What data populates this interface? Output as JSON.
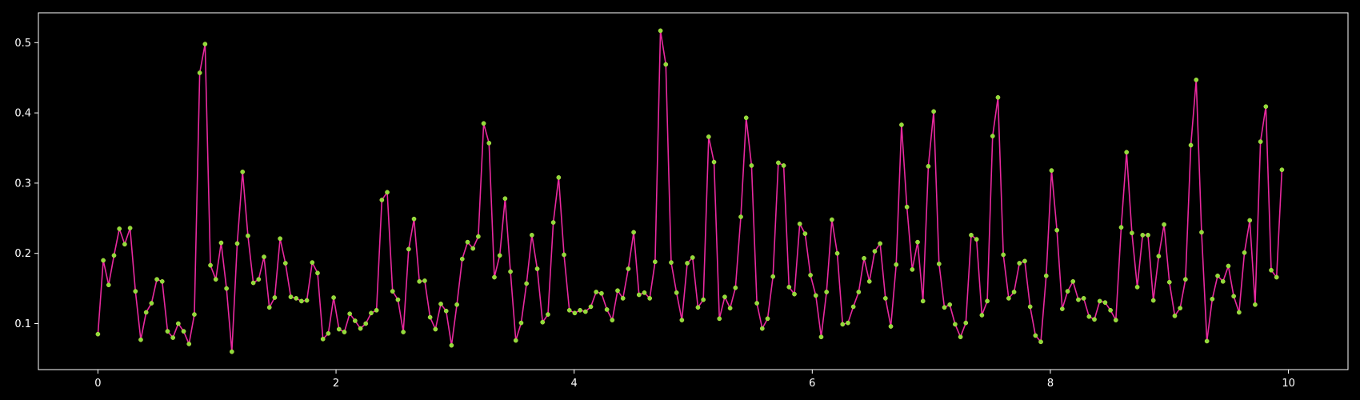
{
  "chart_data": {
    "type": "line",
    "title": "",
    "xlabel": "",
    "ylabel": "",
    "xlim": [
      -0.5,
      10.5
    ],
    "ylim": [
      0.0345,
      0.5425
    ],
    "xticks": [
      0,
      2,
      4,
      6,
      8,
      10
    ],
    "yticks": [
      0.1,
      0.2,
      0.3,
      0.4,
      0.5
    ],
    "xtick_labels": [
      "0",
      "2",
      "4",
      "6",
      "8",
      "10"
    ],
    "ytick_labels": [
      "0.1",
      "0.2",
      "0.3",
      "0.4",
      "0.5"
    ],
    "grid": false,
    "legend": false,
    "line_color": "#e8299f",
    "marker_color": "#8fdc3a",
    "background": "#000000",
    "axis_color": "#ffffff",
    "series": [
      {
        "x_start": 0,
        "x_step": 0.045,
        "values": [
          0.085,
          0.19,
          0.155,
          0.197,
          0.235,
          0.213,
          0.236,
          0.146,
          0.077,
          0.116,
          0.129,
          0.163,
          0.16,
          0.089,
          0.08,
          0.1,
          0.089,
          0.071,
          0.113,
          0.457,
          0.498,
          0.183,
          0.163,
          0.215,
          0.15,
          0.06,
          0.214,
          0.316,
          0.225,
          0.158,
          0.163,
          0.195,
          0.123,
          0.137,
          0.221,
          0.186,
          0.138,
          0.136,
          0.132,
          0.133,
          0.187,
          0.172,
          0.078,
          0.086,
          0.137,
          0.092,
          0.088,
          0.114,
          0.104,
          0.093,
          0.1,
          0.115,
          0.119,
          0.276,
          0.287,
          0.146,
          0.134,
          0.088,
          0.206,
          0.249,
          0.16,
          0.161,
          0.109,
          0.092,
          0.128,
          0.118,
          0.069,
          0.127,
          0.192,
          0.216,
          0.207,
          0.224,
          0.385,
          0.357,
          0.166,
          0.197,
          0.278,
          0.174,
          0.076,
          0.101,
          0.157,
          0.226,
          0.178,
          0.102,
          0.113,
          0.244,
          0.308,
          0.198,
          0.119,
          0.115,
          0.119,
          0.117,
          0.124,
          0.145,
          0.143,
          0.12,
          0.105,
          0.147,
          0.136,
          0.178,
          0.23,
          0.141,
          0.144,
          0.136,
          0.188,
          0.517,
          0.469,
          0.187,
          0.144,
          0.105,
          0.186,
          0.194,
          0.123,
          0.134,
          0.366,
          0.33,
          0.107,
          0.138,
          0.122,
          0.151,
          0.252,
          0.393,
          0.325,
          0.129,
          0.093,
          0.107,
          0.167,
          0.329,
          0.325,
          0.152,
          0.142,
          0.242,
          0.228,
          0.169,
          0.14,
          0.081,
          0.145,
          0.248,
          0.2,
          0.099,
          0.101,
          0.124,
          0.145,
          0.193,
          0.16,
          0.203,
          0.214,
          0.136,
          0.096,
          0.184,
          0.383,
          0.266,
          0.177,
          0.216,
          0.132,
          0.324,
          0.402,
          0.185,
          0.123,
          0.127,
          0.099,
          0.081,
          0.101,
          0.226,
          0.22,
          0.112,
          0.132,
          0.367,
          0.422,
          0.198,
          0.136,
          0.145,
          0.186,
          0.189,
          0.124,
          0.083,
          0.074,
          0.168,
          0.318,
          0.233,
          0.121,
          0.146,
          0.16,
          0.134,
          0.136,
          0.11,
          0.106,
          0.132,
          0.13,
          0.119,
          0.105,
          0.237,
          0.344,
          0.229,
          0.152,
          0.226,
          0.226,
          0.133,
          0.196,
          0.241,
          0.159,
          0.111,
          0.122,
          0.163,
          0.354,
          0.447,
          0.23,
          0.075,
          0.135,
          0.168,
          0.16,
          0.182,
          0.139,
          0.116,
          0.201,
          0.247,
          0.127,
          0.359,
          0.409,
          0.176,
          0.166,
          0.319
        ]
      }
    ]
  }
}
